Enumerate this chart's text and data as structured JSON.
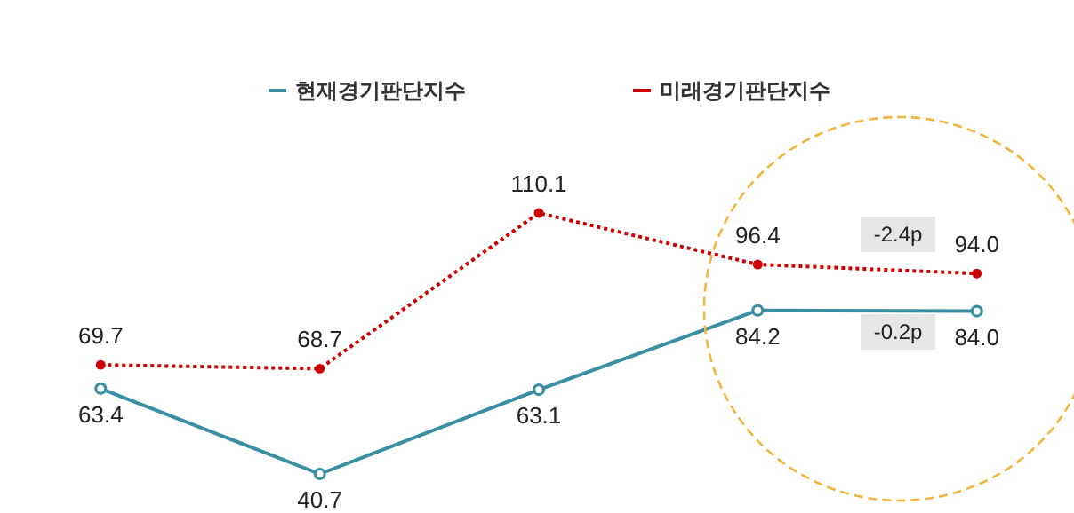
{
  "chart_data": {
    "type": "line",
    "categories": [
      null,
      null,
      null,
      null,
      null
    ],
    "series": [
      {
        "name": "현재경기판단지수",
        "color": "#3a8fa3",
        "line_style": "solid",
        "marker": "circle",
        "values": [
          63.4,
          40.7,
          63.1,
          84.2,
          84.0
        ],
        "value_labels": [
          "63.4",
          "40.7",
          "63.1",
          "84.2",
          "84.0"
        ]
      },
      {
        "name": "미래경기판단지수",
        "color": "#cc0000",
        "line_style": "dotted",
        "marker": "circle",
        "values": [
          69.7,
          68.7,
          110.1,
          96.4,
          94.0
        ],
        "value_labels": [
          "69.7",
          "68.7",
          "110.1",
          "96.4",
          "94.0"
        ]
      }
    ],
    "legend": "top",
    "annotations": [
      "-2.4p",
      "-0.2p"
    ]
  }
}
